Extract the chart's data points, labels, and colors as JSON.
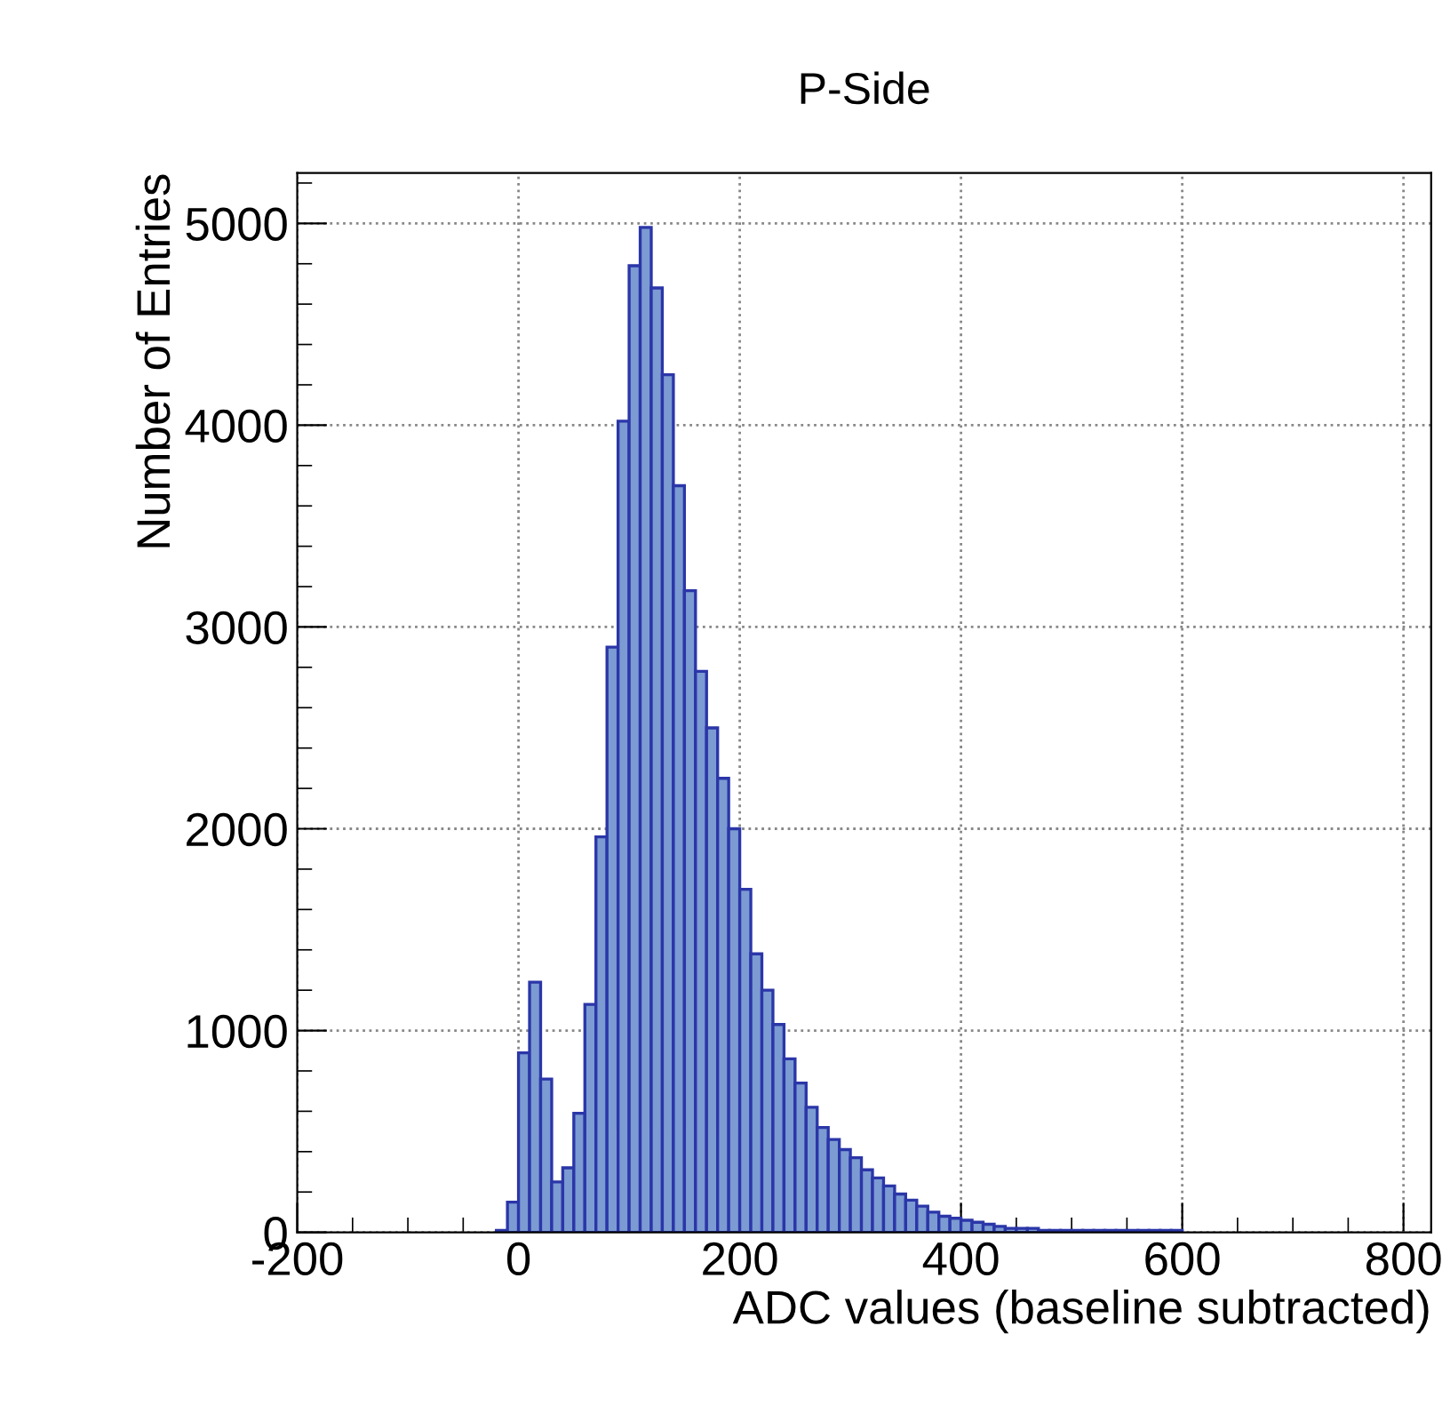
{
  "chart_data": {
    "type": "histogram",
    "title": "P-Side",
    "xlabel": "ADC values (baseline subtracted)",
    "ylabel": "Number of Entries",
    "bins": [
      -40,
      -30,
      -20,
      -10,
      0,
      10,
      20,
      30,
      40,
      50,
      60,
      70,
      80,
      90,
      100,
      110,
      120,
      130,
      140,
      150,
      160,
      170,
      180,
      190,
      200,
      210,
      220,
      230,
      240,
      250,
      260,
      270,
      280,
      290,
      300,
      310,
      320,
      330,
      340,
      350,
      360,
      370,
      380,
      390,
      400,
      410,
      420,
      430,
      440,
      450,
      460,
      470,
      480,
      490,
      500,
      510,
      520,
      530,
      540,
      550,
      560,
      570,
      580,
      590,
      600,
      610,
      620,
      630,
      640,
      650,
      660,
      670,
      680,
      690,
      700,
      710,
      720,
      730,
      740,
      750,
      760,
      770,
      780,
      790,
      800,
      810,
      820
    ],
    "values": [
      0,
      0,
      10,
      150,
      890,
      1240,
      760,
      250,
      320,
      590,
      1130,
      1960,
      2900,
      4020,
      4790,
      4980,
      4680,
      4250,
      3700,
      3180,
      2780,
      2500,
      2250,
      2000,
      1700,
      1380,
      1200,
      1030,
      860,
      740,
      620,
      520,
      460,
      410,
      370,
      310,
      270,
      230,
      190,
      160,
      130,
      100,
      80,
      70,
      60,
      50,
      40,
      30,
      20,
      20,
      20,
      10,
      10,
      10,
      10,
      10,
      10,
      10,
      10,
      10,
      10,
      10,
      10,
      10,
      0,
      0,
      0,
      0,
      0,
      0,
      0,
      0,
      0,
      0,
      0,
      0,
      0,
      0,
      0,
      0,
      0,
      0,
      0,
      0,
      0,
      0
    ],
    "color": "#7b9bd2",
    "xlim": [
      -200,
      825
    ],
    "xticks": [
      -200,
      0,
      200,
      400,
      600,
      800
    ],
    "ylim": [
      0,
      5250
    ],
    "yticks": [
      0,
      1000,
      2000,
      3000,
      4000,
      5000
    ],
    "grid": true
  }
}
